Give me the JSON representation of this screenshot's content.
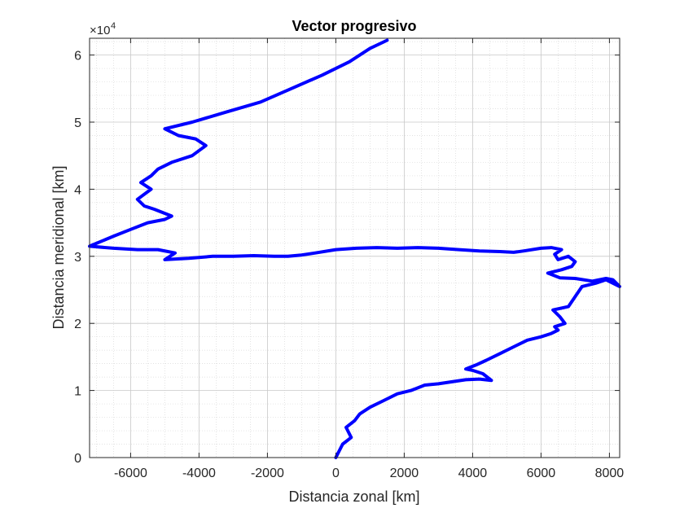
{
  "chart_data": {
    "type": "line",
    "title": "Vector progresivo",
    "xlabel": "Distancia zonal [km]",
    "ylabel": "Distancia meridional [km]",
    "xlim": [
      -7200,
      8300
    ],
    "ylim": [
      0,
      62500
    ],
    "x_ticks": [
      -6000,
      -4000,
      -2000,
      0,
      2000,
      4000,
      6000,
      8000
    ],
    "x_tick_labels": [
      "-6000",
      "-4000",
      "-2000",
      "0",
      "2000",
      "4000",
      "6000",
      "8000"
    ],
    "y_ticks": [
      0,
      10000,
      20000,
      30000,
      40000,
      50000,
      60000
    ],
    "y_tick_labels": [
      "0",
      "1",
      "2",
      "3",
      "4",
      "5",
      "6"
    ],
    "y_exponent_base": "×10",
    "y_exponent_power": "4",
    "grid": true,
    "minor_grid": true,
    "line_color": "#0000ff",
    "series": [
      {
        "x": [
          0,
          200,
          450,
          300,
          550,
          700,
          1000,
          1400,
          1800,
          2200,
          2600,
          3000,
          3400,
          3800,
          4200,
          4550,
          4300,
          4000,
          3800,
          4100,
          4400,
          4800,
          5200,
          5600,
          6000,
          6300,
          6500,
          6400,
          6700,
          6550,
          6350,
          6800,
          7000,
          7200,
          7600,
          7900,
          8300,
          8100,
          7900,
          7500,
          7000,
          6550,
          6200,
          6600,
          6900,
          7000,
          6800,
          6500,
          6400,
          6600,
          6300,
          6000,
          5500,
          5200,
          4800,
          4200,
          3600,
          3000,
          2400,
          1800,
          1200,
          600,
          0,
          -600,
          -1000,
          -1400,
          -1800,
          -2400,
          -3000,
          -3600,
          -4300,
          -5000,
          -4700,
          -5200,
          -5800,
          -6500,
          -7200,
          -6500,
          -6000,
          -5500,
          -5000,
          -4800,
          -5300,
          -5600,
          -5800,
          -5400,
          -5700,
          -5400,
          -5200,
          -4800,
          -4200,
          -3800,
          -4100,
          -4600,
          -5000,
          -4200,
          -3200,
          -2200,
          -1300,
          -400,
          400,
          1000,
          1500
        ],
        "y": [
          0,
          2000,
          3000,
          4500,
          5500,
          6500,
          7500,
          8500,
          9500,
          10000,
          10800,
          11000,
          11300,
          11600,
          11700,
          11500,
          12500,
          13000,
          13200,
          13800,
          14500,
          15500,
          16500,
          17500,
          18000,
          18500,
          19000,
          19500,
          20000,
          21000,
          22000,
          22500,
          24000,
          25500,
          26000,
          26500,
          25500,
          26500,
          26700,
          26300,
          26700,
          26800,
          27500,
          28000,
          28500,
          29200,
          30000,
          29500,
          30300,
          31000,
          31300,
          31200,
          30800,
          30600,
          30700,
          30800,
          31000,
          31200,
          31300,
          31200,
          31300,
          31200,
          31000,
          30500,
          30200,
          30000,
          30000,
          30100,
          30000,
          30000,
          29700,
          29500,
          30500,
          31000,
          31000,
          31200,
          31500,
          33000,
          34000,
          35000,
          35500,
          36000,
          37000,
          37500,
          38500,
          40000,
          41000,
          42000,
          43000,
          44000,
          45000,
          46500,
          47500,
          48000,
          49000,
          50000,
          51500,
          53000,
          55000,
          57000,
          59000,
          61000,
          62200
        ]
      }
    ]
  }
}
